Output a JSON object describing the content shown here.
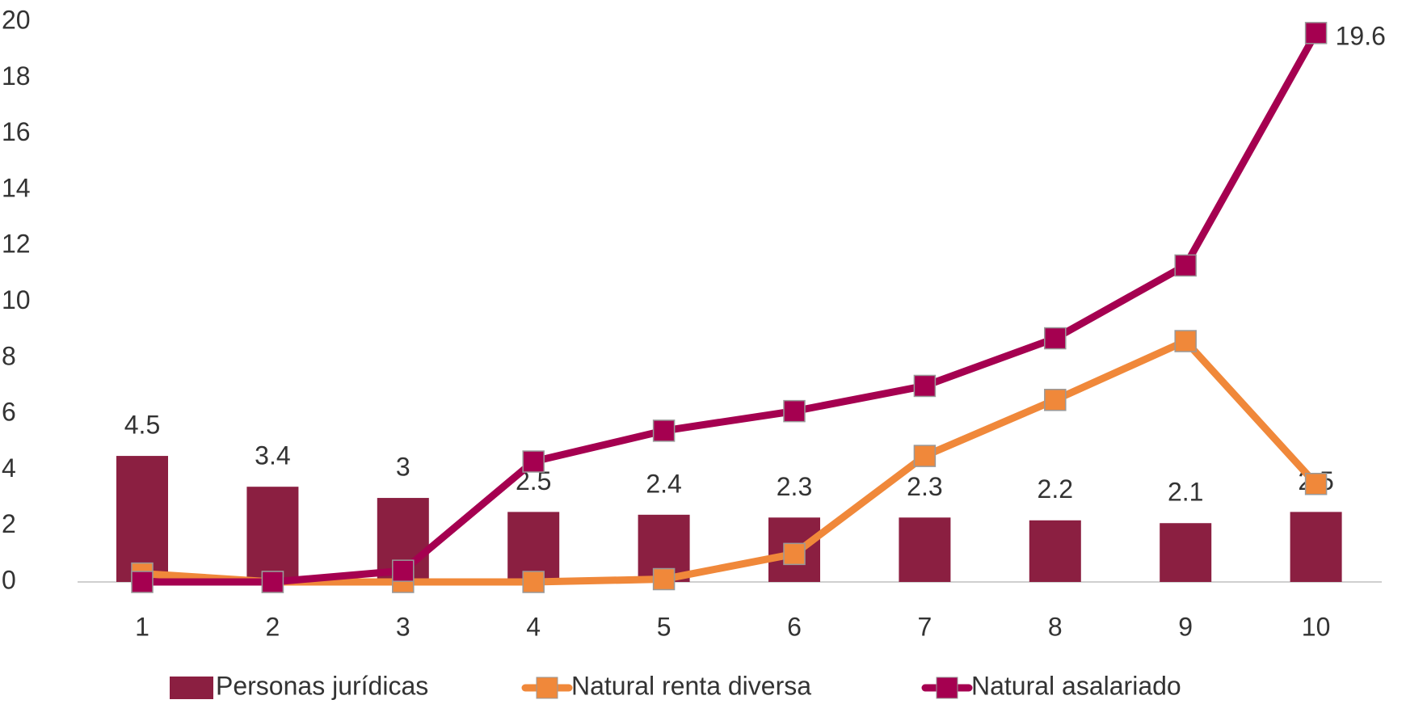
{
  "chart_data": {
    "type": "combo",
    "categories": [
      "1",
      "2",
      "3",
      "4",
      "5",
      "6",
      "7",
      "8",
      "9",
      "10"
    ],
    "series": [
      {
        "name": "Personas jurídicas",
        "type": "bar",
        "color": "#8b1f41",
        "values": [
          4.5,
          3.4,
          3,
          2.5,
          2.4,
          2.3,
          2.3,
          2.2,
          2.1,
          2.5
        ]
      },
      {
        "name": "Natural renta diversa",
        "type": "line",
        "color": "#f0883a",
        "values": [
          0.3,
          0,
          0,
          0,
          0.1,
          1.0,
          4.5,
          6.5,
          8.6,
          3.5
        ]
      },
      {
        "name": "Natural asalariado",
        "type": "line",
        "color": "#a50050",
        "values": [
          0,
          0,
          0.4,
          4.3,
          5.4,
          6.1,
          7.0,
          8.7,
          11.3,
          19.6
        ],
        "value_labels": [
          null,
          null,
          null,
          null,
          null,
          null,
          null,
          null,
          null,
          "19.6"
        ]
      }
    ],
    "ylim": [
      0,
      20
    ],
    "yticks": [
      0,
      2,
      4,
      6,
      8,
      10,
      12,
      14,
      16,
      18,
      20
    ],
    "grid": false,
    "legend": "bottom"
  }
}
